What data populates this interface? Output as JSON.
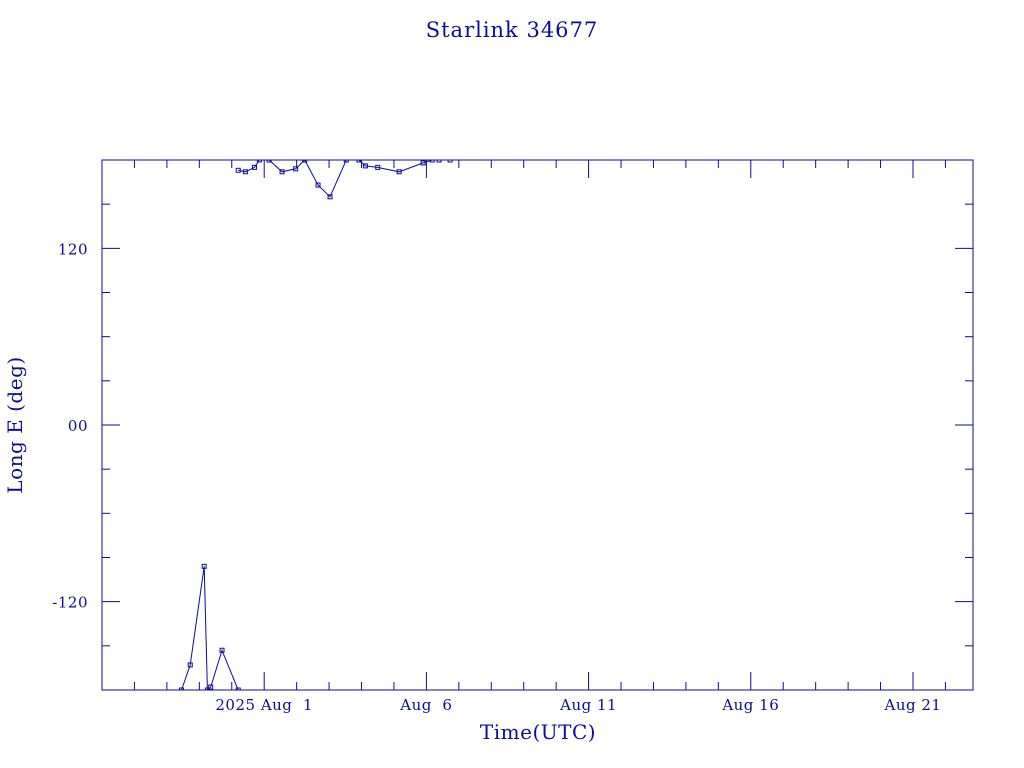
{
  "chart_data": {
    "type": "line",
    "title": "Starlink 34677",
    "xlabel": "Time(UTC)",
    "ylabel": "Long E (deg)",
    "x_unit": "days",
    "x_ticks": [
      {
        "value": 0,
        "label": "2025 Aug  1"
      },
      {
        "value": 5,
        "label": "Aug  6"
      },
      {
        "value": 10,
        "label": "Aug 11"
      },
      {
        "value": 15,
        "label": "Aug 16"
      },
      {
        "value": 20,
        "label": "Aug 21"
      }
    ],
    "y_ticks": [
      {
        "value": 120,
        "label": "120"
      },
      {
        "value": 0,
        "label": "00"
      },
      {
        "value": -120,
        "label": "-120"
      }
    ],
    "xlim": [
      -5,
      21.85
    ],
    "ylim": [
      -180,
      180
    ],
    "grid": false,
    "color": "#0b0b9a",
    "series": [
      {
        "x": [
          -2.55,
          -2.28,
          -1.85,
          -1.75,
          -1.65,
          -1.3,
          -0.8,
          -0.8,
          -0.58,
          -0.3,
          -0.15,
          0.15,
          0.55,
          0.97,
          1.25,
          1.66,
          2.03,
          2.53,
          2.92,
          3.12,
          3.5,
          4.16,
          4.9,
          5.18,
          5.39,
          5.73
        ],
        "y": [
          -180,
          -163,
          -96,
          -180,
          -178,
          -153,
          -180,
          173,
          172,
          175,
          180,
          180,
          172,
          174,
          180,
          163,
          155,
          180,
          180,
          176,
          175,
          172,
          178,
          180,
          180,
          180
        ],
        "note_legacy": "ignored"
      }
    ]
  }
}
